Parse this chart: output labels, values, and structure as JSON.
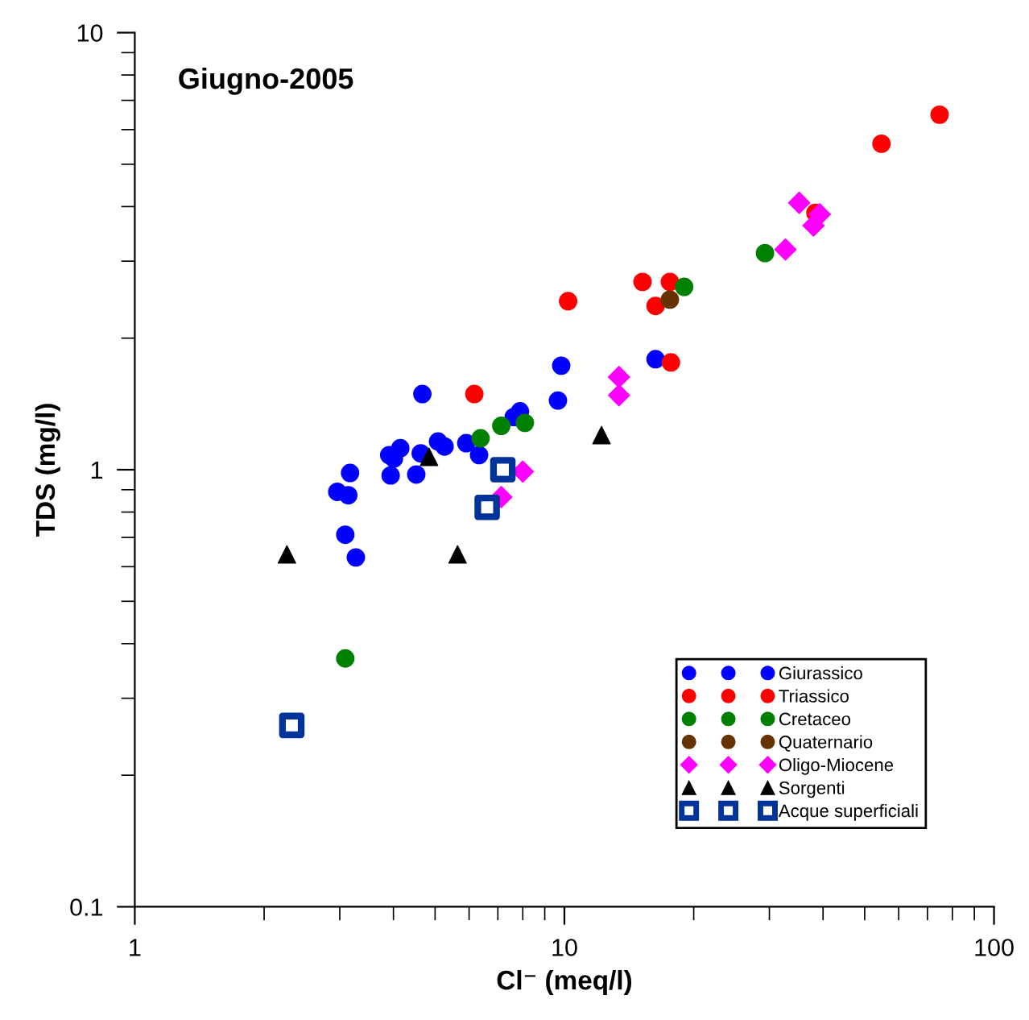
{
  "chart_data": {
    "type": "scatter",
    "title": "Giugno-2005",
    "xlabel": "Cl⁻ (meq/l)",
    "ylabel": "TDS (mg/l)",
    "log": "xy",
    "xlim": [
      1,
      100
    ],
    "ylim": [
      0.1,
      10
    ],
    "xticks": [
      1,
      10,
      100
    ],
    "yticks": [
      0.1,
      1,
      10
    ],
    "grid": false,
    "legend": "bottom right",
    "series": [
      {
        "name": "Giurassico",
        "color": "#0000ff",
        "marker": "circle",
        "x": [
          9.83,
          9.66,
          4.67,
          7.88,
          7.62,
          5.08,
          5.26,
          3.91,
          4.15,
          4.01,
          4.63,
          5.91,
          6.33,
          3.94,
          4.52,
          3.17,
          2.96,
          3.14,
          3.09,
          3.27,
          16.3
        ],
        "values": [
          1.73,
          1.44,
          1.49,
          1.36,
          1.32,
          1.16,
          1.13,
          1.08,
          1.12,
          1.06,
          1.09,
          1.15,
          1.08,
          0.97,
          0.975,
          0.983,
          0.89,
          0.874,
          0.71,
          0.63,
          1.79
        ]
      },
      {
        "name": "Triassico",
        "color": "#ff0000",
        "marker": "circle",
        "x": [
          74.7,
          54.7,
          38.4,
          10.2,
          15.2,
          17.6,
          16.3,
          17.7,
          6.17
        ],
        "values": [
          6.49,
          5.57,
          3.87,
          2.43,
          2.69,
          2.69,
          2.37,
          1.76,
          1.49
        ]
      },
      {
        "name": "Cretaceo",
        "color": "#008000",
        "marker": "circle",
        "x": [
          29.3,
          19.0,
          8.09,
          7.13,
          6.38,
          3.09
        ],
        "values": [
          3.13,
          2.62,
          1.28,
          1.26,
          1.18,
          0.37
        ]
      },
      {
        "name": "Quaternario",
        "color": "#663300",
        "marker": "circle",
        "x": [
          17.6
        ],
        "values": [
          2.45
        ]
      },
      {
        "name": "Oligo-Miocene",
        "color": "#ff00ff",
        "marker": "diamond",
        "x": [
          35.2,
          39.3,
          38.0,
          32.7,
          13.4,
          13.4,
          8.0,
          7.13
        ],
        "values": [
          4.08,
          3.84,
          3.62,
          3.19,
          1.63,
          1.48,
          0.99,
          0.866
        ]
      },
      {
        "name": "Sorgenti",
        "color": "#000000",
        "marker": "triangle",
        "x": [
          2.26,
          5.64,
          4.84,
          12.2
        ],
        "values": [
          0.64,
          0.64,
          1.07,
          1.2
        ]
      },
      {
        "name": "Acque superficiali",
        "color": "#003399",
        "marker": "square",
        "x": [
          7.19,
          6.61,
          2.32
        ],
        "values": [
          1.0,
          0.82,
          0.26
        ]
      }
    ]
  }
}
